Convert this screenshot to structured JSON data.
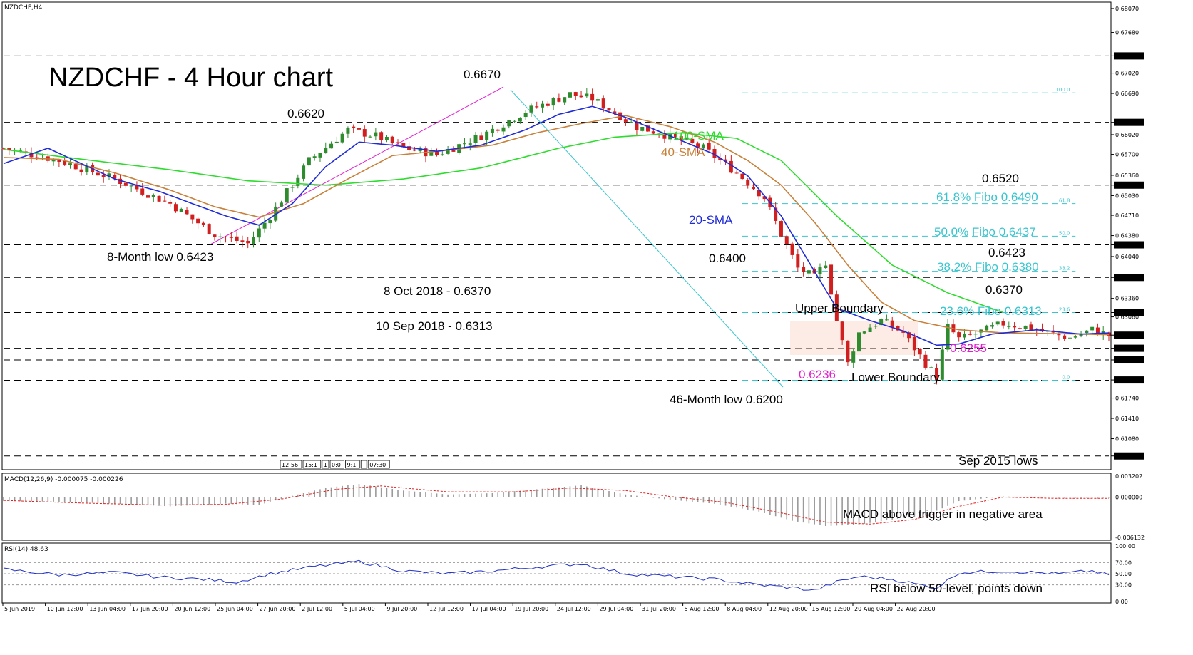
{
  "header": {
    "symbol_label": "NZDCHF,H4",
    "title": "NZDCHF - 4 Hour chart"
  },
  "colors": {
    "up": "#2e8b2e",
    "down": "#d11f1f",
    "sma20": "#1f2bd6",
    "sma40": "#c8803a",
    "sma100": "#2edc2e",
    "fibo": "#39c5cf",
    "magenta": "#e21fd0",
    "macd_hist": "#9a9a9a",
    "macd_signal": "#e02020",
    "rsi": "#2030c8"
  },
  "chart_data": [
    {
      "type": "candlestick",
      "name": "price",
      "ylim": [
        0.606,
        0.6815
      ],
      "y_ticks": [
        "0.68070",
        "0.67680",
        "0.67300",
        "0.67020",
        "0.66690",
        "0.66220",
        "0.66020",
        "0.65700",
        "0.65360",
        "0.65200",
        "0.65030",
        "0.64710",
        "0.64380",
        "0.64230",
        "0.64040",
        "0.63700",
        "0.63360",
        "0.63130",
        "0.63060",
        "0.62763",
        "0.62550",
        "0.62360",
        "0.62035",
        "0.61740",
        "0.61410",
        "0.61080",
        "0.60800"
      ],
      "highlighted_ticks": [
        "0.67300",
        "0.66220",
        "0.65200",
        "0.64230",
        "0.63700",
        "0.63130",
        "0.62763",
        "0.62550",
        "0.62360",
        "0.62035",
        "0.60800"
      ],
      "x_ticks": [
        "5 Jun 2019",
        "10 Jun 12:00",
        "13 Jun 04:00",
        "17 Jun 20:00",
        "20 Jun 12:00",
        "25 Jun 04:00",
        "27 Jun 20:00",
        "2 Jul 12:00",
        "5 Jul 04:00",
        "9 Jul 20:00",
        "12 Jul 12:00",
        "17 Jul 04:00",
        "19 Jul 20:00",
        "24 Jul 12:00",
        "29 Jul 04:00",
        "31 Jul 20:00",
        "5 Aug 12:00",
        "8 Aug 04:00",
        "12 Aug 20:00",
        "15 Aug 12:00",
        "20 Aug 04:00",
        "22 Aug 20:00"
      ],
      "price_path": [
        [
          0,
          0.658
        ],
        [
          10,
          0.656
        ],
        [
          20,
          0.653
        ],
        [
          30,
          0.649
        ],
        [
          38,
          0.644
        ],
        [
          44,
          0.6425
        ],
        [
          48,
          0.647
        ],
        [
          55,
          0.656
        ],
        [
          62,
          0.661
        ],
        [
          67,
          0.66
        ],
        [
          72,
          0.658
        ],
        [
          78,
          0.657
        ],
        [
          86,
          0.66
        ],
        [
          94,
          0.664
        ],
        [
          102,
          0.6668
        ],
        [
          106,
          0.666
        ],
        [
          110,
          0.6638
        ],
        [
          114,
          0.6615
        ],
        [
          118,
          0.6605
        ],
        [
          126,
          0.658
        ],
        [
          132,
          0.654
        ],
        [
          137,
          0.65
        ],
        [
          140,
          0.644
        ],
        [
          143,
          0.6385
        ],
        [
          146,
          0.637
        ],
        [
          148,
          0.6395
        ],
        [
          150,
          0.63
        ],
        [
          152,
          0.623
        ],
        [
          154,
          0.628
        ],
        [
          158,
          0.63
        ],
        [
          162,
          0.628
        ],
        [
          166,
          0.623
        ],
        [
          168,
          0.6208
        ],
        [
          170,
          0.629
        ],
        [
          172,
          0.627
        ],
        [
          176,
          0.6282
        ],
        [
          180,
          0.6295
        ],
        [
          184,
          0.629
        ],
        [
          188,
          0.628
        ],
        [
          192,
          0.6272
        ],
        [
          196,
          0.6285
        ],
        [
          199,
          0.6276
        ]
      ],
      "sma20_path": [
        [
          0,
          0.6555
        ],
        [
          8,
          0.658
        ],
        [
          20,
          0.653
        ],
        [
          28,
          0.651
        ],
        [
          34,
          0.649
        ],
        [
          40,
          0.647
        ],
        [
          46,
          0.6455
        ],
        [
          52,
          0.649
        ],
        [
          58,
          0.655
        ],
        [
          64,
          0.659
        ],
        [
          70,
          0.6585
        ],
        [
          78,
          0.6575
        ],
        [
          86,
          0.6585
        ],
        [
          94,
          0.661
        ],
        [
          100,
          0.6635
        ],
        [
          106,
          0.6648
        ],
        [
          112,
          0.663
        ],
        [
          120,
          0.66
        ],
        [
          128,
          0.657
        ],
        [
          134,
          0.6535
        ],
        [
          140,
          0.647
        ],
        [
          146,
          0.638
        ],
        [
          150,
          0.632
        ],
        [
          156,
          0.63
        ],
        [
          162,
          0.6283
        ],
        [
          168,
          0.626
        ],
        [
          172,
          0.6262
        ],
        [
          178,
          0.6278
        ],
        [
          186,
          0.6285
        ],
        [
          194,
          0.6278
        ],
        [
          199,
          0.628
        ]
      ],
      "sma40_path": [
        [
          0,
          0.6565
        ],
        [
          10,
          0.6562
        ],
        [
          20,
          0.654
        ],
        [
          30,
          0.6512
        ],
        [
          38,
          0.6485
        ],
        [
          46,
          0.6468
        ],
        [
          54,
          0.649
        ],
        [
          62,
          0.653
        ],
        [
          70,
          0.6568
        ],
        [
          78,
          0.6575
        ],
        [
          88,
          0.6585
        ],
        [
          96,
          0.6605
        ],
        [
          104,
          0.662
        ],
        [
          112,
          0.6633
        ],
        [
          120,
          0.6615
        ],
        [
          128,
          0.659
        ],
        [
          134,
          0.656
        ],
        [
          140,
          0.652
        ],
        [
          146,
          0.646
        ],
        [
          152,
          0.639
        ],
        [
          158,
          0.633
        ],
        [
          164,
          0.63
        ],
        [
          172,
          0.6285
        ],
        [
          180,
          0.628
        ],
        [
          188,
          0.6279
        ],
        [
          199,
          0.6277
        ]
      ],
      "sma100_path": [
        [
          0,
          0.6578
        ],
        [
          16,
          0.656
        ],
        [
          30,
          0.6545
        ],
        [
          44,
          0.6527
        ],
        [
          58,
          0.652
        ],
        [
          72,
          0.653
        ],
        [
          86,
          0.6548
        ],
        [
          100,
          0.658
        ],
        [
          110,
          0.6598
        ],
        [
          122,
          0.6605
        ],
        [
          132,
          0.6596
        ],
        [
          140,
          0.656
        ],
        [
          150,
          0.647
        ],
        [
          160,
          0.639
        ],
        [
          170,
          0.6345
        ],
        [
          180,
          0.6313
        ]
      ],
      "candle_wick_ratio": 0.6
    },
    {
      "type": "histogram",
      "name": "MACD(12,26,9)",
      "label": "MACD(12,26,9) -0.000075 -0.000226",
      "y_ticks": [
        "0.003202",
        "0.000000",
        "-0.006132"
      ],
      "ylim": [
        -0.006132,
        0.003202
      ],
      "hist_path": [
        [
          0,
          -0.0006
        ],
        [
          10,
          -0.0007
        ],
        [
          20,
          -0.001
        ],
        [
          30,
          -0.0014
        ],
        [
          40,
          -0.001
        ],
        [
          46,
          -0.0012
        ],
        [
          52,
          0.0002
        ],
        [
          58,
          0.0014
        ],
        [
          64,
          0.002
        ],
        [
          72,
          0.001
        ],
        [
          80,
          0.0004
        ],
        [
          88,
          0.0006
        ],
        [
          96,
          0.0012
        ],
        [
          104,
          0.0018
        ],
        [
          112,
          0.0004
        ],
        [
          120,
          -0.0004
        ],
        [
          128,
          -0.001
        ],
        [
          136,
          -0.0022
        ],
        [
          142,
          -0.0036
        ],
        [
          148,
          -0.0044
        ],
        [
          154,
          -0.0042
        ],
        [
          160,
          -0.0034
        ],
        [
          166,
          -0.0028
        ],
        [
          172,
          -0.0006
        ],
        [
          180,
          0.0001
        ],
        [
          190,
          -0.0001
        ],
        [
          199,
          -0.0001
        ]
      ],
      "signal_path": [
        [
          0,
          -0.0005
        ],
        [
          14,
          -0.0009
        ],
        [
          28,
          -0.0012
        ],
        [
          40,
          -0.0011
        ],
        [
          50,
          -0.0003
        ],
        [
          60,
          0.0012
        ],
        [
          68,
          0.0017
        ],
        [
          80,
          0.0008
        ],
        [
          92,
          0.0008
        ],
        [
          102,
          0.0014
        ],
        [
          112,
          0.001
        ],
        [
          120,
          0.0001
        ],
        [
          130,
          -0.0008
        ],
        [
          140,
          -0.0024
        ],
        [
          148,
          -0.0038
        ],
        [
          156,
          -0.0041
        ],
        [
          164,
          -0.0034
        ],
        [
          172,
          -0.0014
        ],
        [
          180,
          0.0
        ],
        [
          190,
          -0.0002
        ],
        [
          199,
          -0.0002
        ]
      ]
    },
    {
      "type": "line",
      "name": "RSI(14)",
      "label": "RSI(14) 48.63",
      "y_ticks": [
        "100.00",
        "70.00",
        "50.00",
        "30.00",
        "0.00"
      ],
      "ylim": [
        0,
        100
      ],
      "rsi_path": [
        [
          0,
          58
        ],
        [
          10,
          48
        ],
        [
          20,
          52
        ],
        [
          28,
          44
        ],
        [
          36,
          40
        ],
        [
          42,
          35
        ],
        [
          48,
          50
        ],
        [
          56,
          63
        ],
        [
          64,
          72
        ],
        [
          72,
          55
        ],
        [
          80,
          50
        ],
        [
          88,
          55
        ],
        [
          96,
          62
        ],
        [
          104,
          68
        ],
        [
          112,
          50
        ],
        [
          120,
          45
        ],
        [
          128,
          40
        ],
        [
          136,
          30
        ],
        [
          142,
          25
        ],
        [
          146,
          20
        ],
        [
          150,
          35
        ],
        [
          154,
          45
        ],
        [
          160,
          40
        ],
        [
          166,
          28
        ],
        [
          168,
          25
        ],
        [
          172,
          52
        ],
        [
          180,
          55
        ],
        [
          190,
          50
        ],
        [
          196,
          55
        ],
        [
          199,
          48
        ]
      ]
    }
  ],
  "levels": [
    {
      "price": 0.673,
      "style": "black"
    },
    {
      "price": 0.6622,
      "style": "black"
    },
    {
      "price": 0.652,
      "style": "black"
    },
    {
      "price": 0.6423,
      "style": "black"
    },
    {
      "price": 0.637,
      "style": "black"
    },
    {
      "price": 0.6313,
      "style": "black"
    },
    {
      "price": 0.6255,
      "style": "black"
    },
    {
      "price": 0.6236,
      "style": "black"
    },
    {
      "price": 0.6203,
      "style": "black"
    },
    {
      "price": 0.608,
      "style": "black"
    }
  ],
  "fibo_levels": [
    {
      "price": 0.667,
      "tag": "100.0"
    },
    {
      "price": 0.649,
      "tag": "61.8"
    },
    {
      "price": 0.6437,
      "tag": "50.0"
    },
    {
      "price": 0.638,
      "tag": "38.2"
    },
    {
      "price": 0.6313,
      "tag": "23.6"
    },
    {
      "price": 0.6203,
      "tag": "0.0"
    }
  ],
  "annotations": {
    "peak": "0.6670",
    "high_0620": "0.6620",
    "low_8m": "8-Month low 0.6423",
    "oct_2018": "8 Oct 2018 - 0.6370",
    "sep_2018": "10 Sep 2018 - 0.6313",
    "lvl_0400": "0.6400",
    "low_46m": "46-Month low 0.6200",
    "sma100": "100-SMA",
    "sma40": "40-SMA",
    "sma20": "20-SMA",
    "r_0520": "0.6520",
    "fibo_618": "61.8% Fibo 0.6490",
    "fibo_500": "50.0% Fibo 0.6437",
    "r_0423": "0.6423",
    "fibo_382": "38.2% Fibo 0.6380",
    "r_0370": "0.6370",
    "upper_boundary": "Upper Boundary",
    "fibo_236": "23.6% Fibo 0.6313",
    "m_0255": "0.6255",
    "m_0236": "0.6236",
    "lower_boundary": "Lower Boundary",
    "sep_2015": "Sep 2015 lows",
    "macd_note": "MACD above trigger in negative area",
    "rsi_note": "RSI below 50-level, points down"
  },
  "time_box": [
    "12:56",
    "15:1",
    "1",
    "0:0",
    "9:1",
    "",
    "07:30"
  ]
}
